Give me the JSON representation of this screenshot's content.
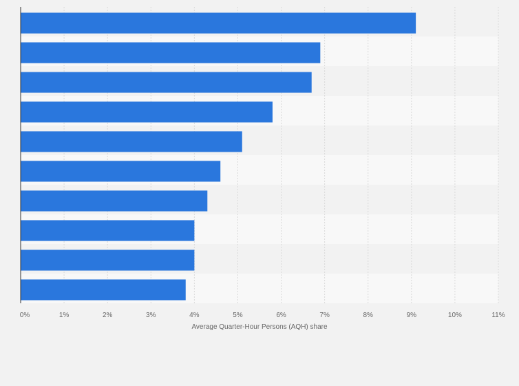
{
  "chart_data": {
    "type": "bar",
    "orientation": "horizontal",
    "categories": [
      "",
      "",
      "",
      "",
      "",
      "",
      "",
      "",
      "",
      ""
    ],
    "values": [
      9.1,
      6.9,
      6.7,
      5.8,
      5.1,
      4.6,
      4.3,
      4.0,
      4.0,
      3.8
    ],
    "xlabel": "Average Quarter-Hour Persons (AQH) share",
    "ylabel": "",
    "xlim": [
      0,
      11
    ],
    "xticks": [
      0,
      1,
      2,
      3,
      4,
      5,
      6,
      7,
      8,
      9,
      10,
      11
    ],
    "xtick_labels": [
      "0%",
      "1%",
      "2%",
      "3%",
      "4%",
      "5%",
      "6%",
      "7%",
      "8%",
      "9%",
      "10%",
      "11%"
    ],
    "grid": true,
    "legend": "none",
    "colors": {
      "bar": "#2a77dd",
      "band_light": "#f8f8f8",
      "band_dark": "#f2f2f2",
      "grid": "#d9d9d9",
      "axis": "#333333"
    }
  }
}
